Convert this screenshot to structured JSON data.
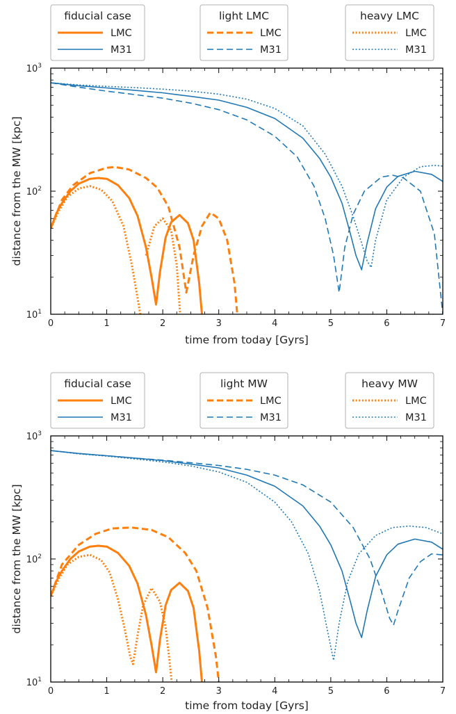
{
  "colors": {
    "lmc": "#ff7f0e",
    "m31": "#1f77b4",
    "frame": "#000000",
    "legend_border": "#b0b0b0"
  },
  "chart_data": [
    {
      "type": "line",
      "xlabel": "time from today [Gyrs]",
      "ylabel": "distance from the MW  [kpc]",
      "xlim": [
        0,
        7
      ],
      "ylim": [
        10,
        1000
      ],
      "yscale": "log",
      "grid": false,
      "x_ticks": [
        "0",
        "1",
        "2",
        "3",
        "4",
        "5",
        "6",
        "7"
      ],
      "y_ticks": [
        "10",
        "10",
        "10"
      ],
      "y_tick_exponents": [
        "1",
        "2",
        "3"
      ],
      "legends": [
        {
          "title": "fiducial case",
          "entries": [
            "LMC",
            "M31"
          ],
          "style": "solid"
        },
        {
          "title": "light LMC",
          "entries": [
            "LMC",
            "M31"
          ],
          "style": "dashed"
        },
        {
          "title": "heavy LMC",
          "entries": [
            "LMC",
            "M31"
          ],
          "style": "dotted"
        }
      ],
      "series": [
        {
          "group": "fiducial case",
          "object": "LMC",
          "style": "solid",
          "x": [
            0,
            0.1,
            0.2,
            0.35,
            0.5,
            0.7,
            0.85,
            1.0,
            1.2,
            1.4,
            1.55,
            1.7,
            1.8,
            1.88,
            1.95,
            2.05,
            2.15,
            2.3,
            2.45,
            2.55,
            2.65,
            2.7
          ],
          "y": [
            50,
            66,
            80,
            100,
            115,
            126,
            128,
            126,
            112,
            88,
            63,
            35,
            20,
            12,
            22,
            42,
            56,
            64,
            55,
            40,
            18,
            10
          ]
        },
        {
          "group": "light LMC",
          "object": "LMC",
          "style": "dashed",
          "x": [
            0,
            0.2,
            0.4,
            0.7,
            1.0,
            1.15,
            1.4,
            1.7,
            1.9,
            2.1,
            2.3,
            2.42,
            2.55,
            2.7,
            2.85,
            3.0,
            3.15,
            3.28,
            3.33
          ],
          "y": [
            50,
            85,
            112,
            140,
            155,
            157,
            150,
            128,
            107,
            75,
            35,
            15,
            30,
            52,
            67,
            60,
            40,
            18,
            10
          ]
        },
        {
          "group": "heavy LMC",
          "object": "LMC",
          "style": "dotted",
          "x": [
            0,
            0.15,
            0.3,
            0.5,
            0.7,
            0.9,
            1.1,
            1.3,
            1.45,
            1.57,
            1.6
          ],
          "y": [
            50,
            70,
            90,
            105,
            110,
            103,
            83,
            52,
            25,
            12,
            10
          ]
        },
        {
          "group": "heavy LMC",
          "object": "LMC",
          "style": "dotted",
          "x": [
            1.7,
            1.85,
            2.0,
            2.15,
            2.25,
            2.31
          ],
          "y": [
            30,
            52,
            60,
            48,
            25,
            10
          ]
        },
        {
          "group": "fiducial case",
          "object": "M31",
          "style": "solid",
          "x": [
            0,
            0.5,
            1.0,
            1.5,
            2.0,
            2.5,
            3.0,
            3.5,
            4.0,
            4.5,
            4.8,
            5.0,
            5.2,
            5.35,
            5.45,
            5.55,
            5.65,
            5.8,
            6.0,
            6.2,
            6.5,
            6.8,
            7.0
          ],
          "y": [
            760,
            720,
            690,
            660,
            630,
            590,
            550,
            480,
            390,
            270,
            185,
            130,
            80,
            45,
            30,
            23,
            38,
            72,
            108,
            132,
            145,
            137,
            120
          ]
        },
        {
          "group": "light LMC",
          "object": "M31",
          "style": "dashed",
          "x": [
            0,
            0.5,
            1.0,
            1.5,
            2.0,
            2.5,
            3.0,
            3.5,
            4.0,
            4.4,
            4.7,
            4.9,
            5.05,
            5.15,
            5.25,
            5.4,
            5.6,
            5.9,
            6.1,
            6.3,
            6.6,
            6.85,
            6.93,
            7.0
          ],
          "y": [
            760,
            700,
            650,
            610,
            570,
            520,
            460,
            380,
            280,
            190,
            110,
            60,
            30,
            15,
            35,
            65,
            100,
            130,
            135,
            128,
            100,
            45,
            20,
            10
          ]
        },
        {
          "group": "heavy LMC",
          "object": "M31",
          "style": "dotted",
          "x": [
            0,
            0.5,
            1.0,
            1.5,
            2.0,
            2.5,
            3.0,
            3.5,
            4.0,
            4.5,
            4.9,
            5.2,
            5.4,
            5.55,
            5.65,
            5.72,
            5.8,
            6.0,
            6.3,
            6.6,
            6.85,
            7.0
          ],
          "y": [
            760,
            730,
            710,
            695,
            675,
            650,
            615,
            560,
            470,
            340,
            200,
            110,
            62,
            38,
            27,
            24,
            40,
            85,
            130,
            158,
            162,
            160
          ]
        }
      ]
    },
    {
      "type": "line",
      "xlabel": "time from today [Gyrs]",
      "ylabel": "distance from the MW  [kpc]",
      "xlim": [
        0,
        7
      ],
      "ylim": [
        10,
        1000
      ],
      "yscale": "log",
      "grid": false,
      "x_ticks": [
        "0",
        "1",
        "2",
        "3",
        "4",
        "5",
        "6",
        "7"
      ],
      "y_ticks": [
        "10",
        "10",
        "10"
      ],
      "y_tick_exponents": [
        "1",
        "2",
        "3"
      ],
      "legends": [
        {
          "title": "fiducial case",
          "entries": [
            "LMC",
            "M31"
          ],
          "style": "solid"
        },
        {
          "title": "light MW",
          "entries": [
            "LMC",
            "M31"
          ],
          "style": "dashed"
        },
        {
          "title": "heavy MW",
          "entries": [
            "LMC",
            "M31"
          ],
          "style": "dotted"
        }
      ],
      "series": [
        {
          "group": "fiducial case",
          "object": "LMC",
          "style": "solid",
          "x": [
            0,
            0.1,
            0.2,
            0.35,
            0.5,
            0.7,
            0.85,
            1.0,
            1.2,
            1.4,
            1.55,
            1.7,
            1.8,
            1.88,
            1.95,
            2.05,
            2.15,
            2.3,
            2.45,
            2.55,
            2.65,
            2.7
          ],
          "y": [
            50,
            66,
            80,
            100,
            115,
            126,
            128,
            126,
            112,
            88,
            63,
            35,
            20,
            12,
            22,
            42,
            56,
            64,
            55,
            40,
            18,
            10
          ]
        },
        {
          "group": "light MW",
          "object": "LMC",
          "style": "dashed",
          "x": [
            0,
            0.2,
            0.5,
            0.8,
            1.1,
            1.45,
            1.8,
            2.1,
            2.4,
            2.6,
            2.8,
            2.95,
            3.0
          ],
          "y": [
            50,
            90,
            130,
            160,
            177,
            180,
            172,
            150,
            112,
            80,
            40,
            16,
            10
          ]
        },
        {
          "group": "heavy MW",
          "object": "LMC",
          "style": "dotted",
          "x": [
            0,
            0.15,
            0.3,
            0.5,
            0.7,
            0.9,
            1.05,
            1.2,
            1.32,
            1.42,
            1.47,
            1.55,
            1.65,
            1.8,
            1.95,
            2.05,
            2.12,
            2.16
          ],
          "y": [
            50,
            70,
            90,
            104,
            108,
            98,
            78,
            47,
            27,
            16,
            14,
            24,
            42,
            58,
            45,
            28,
            15,
            10
          ]
        },
        {
          "group": "fiducial case",
          "object": "M31",
          "style": "solid",
          "x": [
            0,
            0.5,
            1.0,
            1.5,
            2.0,
            2.5,
            3.0,
            3.5,
            4.0,
            4.5,
            4.8,
            5.0,
            5.2,
            5.35,
            5.45,
            5.55,
            5.65,
            5.8,
            6.0,
            6.2,
            6.5,
            6.8,
            7.0
          ],
          "y": [
            760,
            720,
            690,
            660,
            630,
            590,
            550,
            480,
            390,
            270,
            185,
            130,
            80,
            45,
            30,
            23,
            38,
            72,
            108,
            132,
            145,
            137,
            120
          ]
        },
        {
          "group": "light MW",
          "object": "M31",
          "style": "dashed",
          "x": [
            0,
            0.5,
            1.0,
            1.5,
            2.0,
            2.5,
            3.0,
            3.5,
            4.0,
            4.5,
            5.0,
            5.4,
            5.7,
            5.9,
            6.05,
            6.12,
            6.2,
            6.4,
            6.6,
            6.8,
            7.0
          ],
          "y": [
            760,
            720,
            690,
            660,
            635,
            605,
            575,
            535,
            480,
            400,
            290,
            180,
            100,
            55,
            33,
            29,
            38,
            70,
            95,
            110,
            108
          ]
        },
        {
          "group": "heavy MW",
          "object": "M31",
          "style": "dotted",
          "x": [
            0,
            0.5,
            1.0,
            1.5,
            2.0,
            2.5,
            3.0,
            3.5,
            4.0,
            4.3,
            4.6,
            4.8,
            4.95,
            5.05,
            5.15,
            5.3,
            5.5,
            5.8,
            6.1,
            6.4,
            6.7,
            7.0
          ],
          "y": [
            760,
            715,
            685,
            650,
            615,
            570,
            510,
            420,
            290,
            200,
            110,
            55,
            25,
            15,
            30,
            65,
            110,
            155,
            180,
            185,
            180,
            160
          ]
        }
      ]
    }
  ]
}
